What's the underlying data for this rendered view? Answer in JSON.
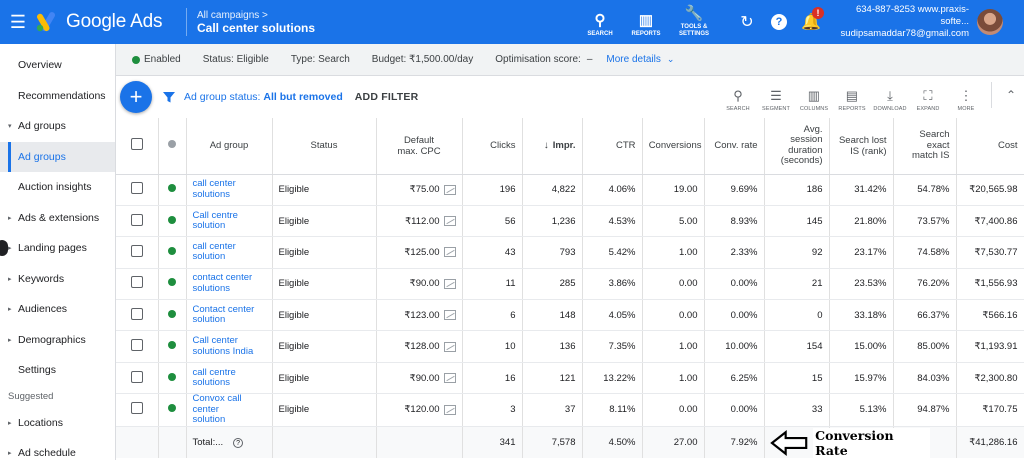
{
  "topbar": {
    "app_name": "Google Ads",
    "breadcrumb": "All campaigns",
    "breadcrumb_chevron": ">",
    "campaign_title": "Call center solutions",
    "tools": [
      {
        "label": "SEARCH",
        "icon": "search-icon"
      },
      {
        "label": "REPORTS",
        "icon": "reports-icon"
      },
      {
        "label_line1": "TOOLS &",
        "label_line2": "SETTINGS",
        "icon": "wrench-icon"
      }
    ],
    "notification_badge": "!",
    "account_line1": "634-887-8253 www.praxis-softe...",
    "account_line2": "sudipsamaddar78@gmail.com"
  },
  "leftnav": {
    "items": [
      {
        "label": "Overview"
      },
      {
        "label": "Recommendations"
      },
      {
        "label": "Ad groups",
        "expanded": true
      },
      {
        "label": "Ad groups",
        "active": true
      },
      {
        "label": "Auction insights"
      },
      {
        "label": "Ads & extensions"
      },
      {
        "label": "Landing pages"
      },
      {
        "label": "Keywords"
      },
      {
        "label": "Audiences"
      },
      {
        "label": "Demographics"
      },
      {
        "label": "Settings"
      }
    ],
    "section_label": "Suggested",
    "suggested": [
      {
        "label": "Locations"
      },
      {
        "label": "Ad schedule"
      }
    ]
  },
  "statusbar": {
    "enabled": "Enabled",
    "status": "Status: Eligible",
    "type": "Type: Search",
    "budget": "Budget: ₹1,500.00/day",
    "opt_label": "Optimisation score:",
    "opt_value": "–",
    "more_details": "More details"
  },
  "filterbar": {
    "filter_prefix": "Ad group status:",
    "filter_value": "All but removed",
    "add_filter": "ADD FILTER",
    "tools": [
      "SEARCH",
      "SEGMENT",
      "COLUMNS",
      "REPORTS",
      "DOWNLOAD",
      "EXPAND",
      "MORE"
    ]
  },
  "table": {
    "headers": {
      "ad_group": "Ad group",
      "status": "Status",
      "cpc_line1": "Default",
      "cpc_line2": "max. CPC",
      "clicks": "Clicks",
      "impr": "Impr.",
      "ctr": "CTR",
      "conversions": "Conversions",
      "conv_rate": "Conv. rate",
      "avg_line1": "Avg.",
      "avg_line2": "session",
      "avg_line3": "duration",
      "avg_line4": "(seconds)",
      "lost_line1": "Search lost",
      "lost_line2": "IS (rank)",
      "exact_line1": "Search",
      "exact_line2": "exact",
      "exact_line3": "match IS",
      "cost": "Cost"
    },
    "rows": [
      {
        "l1": "call center",
        "l2": "solutions",
        "l3": "",
        "status": "Eligible",
        "cpc": "₹75.00",
        "clicks": "196",
        "impr": "4,822",
        "ctr": "4.06%",
        "conv": "19.00",
        "rate": "9.69%",
        "dur": "186",
        "lost": "31.42%",
        "exact": "54.78%",
        "cost": "₹20,565.98"
      },
      {
        "l1": "Call centre",
        "l2": "solution",
        "l3": "",
        "status": "Eligible",
        "cpc": "₹112.00",
        "clicks": "56",
        "impr": "1,236",
        "ctr": "4.53%",
        "conv": "5.00",
        "rate": "8.93%",
        "dur": "145",
        "lost": "21.80%",
        "exact": "73.57%",
        "cost": "₹7,400.86"
      },
      {
        "l1": "call center",
        "l2": "solution",
        "l3": "",
        "status": "Eligible",
        "cpc": "₹125.00",
        "clicks": "43",
        "impr": "793",
        "ctr": "5.42%",
        "conv": "1.00",
        "rate": "2.33%",
        "dur": "92",
        "lost": "23.17%",
        "exact": "74.58%",
        "cost": "₹7,530.77"
      },
      {
        "l1": "contact center",
        "l2": "solutions",
        "l3": "",
        "status": "Eligible",
        "cpc": "₹90.00",
        "clicks": "11",
        "impr": "285",
        "ctr": "3.86%",
        "conv": "0.00",
        "rate": "0.00%",
        "dur": "21",
        "lost": "23.53%",
        "exact": "76.20%",
        "cost": "₹1,556.93"
      },
      {
        "l1": "Contact center",
        "l2": "solution",
        "l3": "",
        "status": "Eligible",
        "cpc": "₹123.00",
        "clicks": "6",
        "impr": "148",
        "ctr": "4.05%",
        "conv": "0.00",
        "rate": "0.00%",
        "dur": "0",
        "lost": "33.18%",
        "exact": "66.37%",
        "cost": "₹566.16"
      },
      {
        "l1": "Call center",
        "l2": "solutions India",
        "l3": "",
        "status": "Eligible",
        "cpc": "₹128.00",
        "clicks": "10",
        "impr": "136",
        "ctr": "7.35%",
        "conv": "1.00",
        "rate": "10.00%",
        "dur": "154",
        "lost": "15.00%",
        "exact": "85.00%",
        "cost": "₹1,193.91"
      },
      {
        "l1": "call centre",
        "l2": "solutions",
        "l3": "",
        "status": "Eligible",
        "cpc": "₹90.00",
        "clicks": "16",
        "impr": "121",
        "ctr": "13.22%",
        "conv": "1.00",
        "rate": "6.25%",
        "dur": "15",
        "lost": "15.97%",
        "exact": "84.03%",
        "cost": "₹2,300.80"
      },
      {
        "l1": "Convox call",
        "l2": "center",
        "l3": "solution",
        "status": "Eligible",
        "cpc": "₹120.00",
        "clicks": "3",
        "impr": "37",
        "ctr": "8.11%",
        "conv": "0.00",
        "rate": "0.00%",
        "dur": "33",
        "lost": "5.13%",
        "exact": "94.87%",
        "cost": "₹170.75"
      }
    ],
    "total": {
      "label": "Total:...",
      "help": "?",
      "clicks": "341",
      "impr": "7,578",
      "ctr": "4.50%",
      "conv": "27.00",
      "rate": "7.92%",
      "dur_partial": "4",
      "cost": "₹41,286.16"
    }
  },
  "annotation": {
    "label": "Conversion Rate"
  },
  "colors": {
    "brand_blue": "#1a73e8",
    "status_green": "#1e8e3e",
    "alert_red": "#d93025"
  }
}
